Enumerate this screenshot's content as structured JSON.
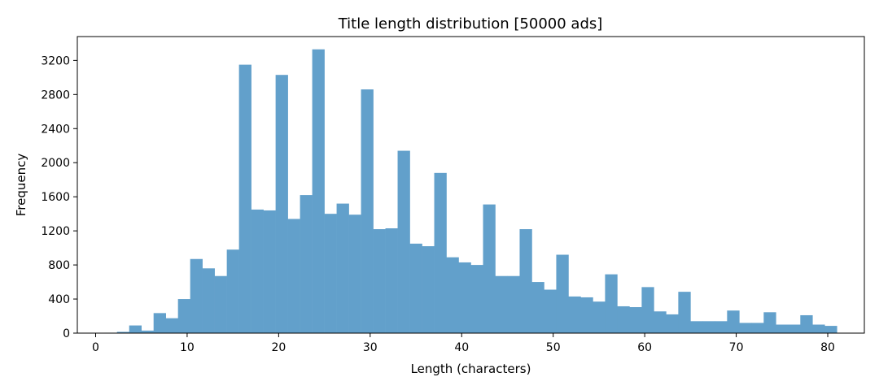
{
  "chart_data": {
    "type": "bar",
    "title": "Title length distribution [50000 ads]",
    "xlabel": "Length (characters)",
    "ylabel": "Frequency",
    "xlim": [
      -2,
      84
    ],
    "ylim": [
      0,
      3480
    ],
    "x_ticks": [
      0,
      10,
      20,
      30,
      40,
      50,
      60,
      70,
      80
    ],
    "y_ticks": [
      0,
      400,
      800,
      1200,
      1600,
      2000,
      2400,
      2800,
      3200
    ],
    "bin_edges": [
      1,
      2.3333,
      3.6667,
      5,
      6.3333,
      7.6667,
      9,
      10.3333,
      11.6667,
      13,
      14.3333,
      15.6667,
      17,
      18.3333,
      19.6667,
      21,
      22.3333,
      23.6667,
      25,
      26.3333,
      27.6667,
      29,
      30.3333,
      31.6667,
      33,
      34.3333,
      35.6667,
      37,
      38.3333,
      39.6667,
      41,
      42.3333,
      43.6667,
      45,
      46.3333,
      47.6667,
      49,
      50.3333,
      51.6667,
      53,
      54.3333,
      55.6667,
      57,
      58.3333,
      59.6667,
      61,
      62.3333,
      63.6667,
      65,
      66.3333,
      67.6667,
      69,
      70.3333,
      71.6667,
      73,
      74.3333,
      75.6667,
      77,
      78.3333,
      79.6667,
      81
    ],
    "values": [
      5,
      15,
      90,
      30,
      235,
      175,
      400,
      870,
      760,
      670,
      980,
      3150,
      1450,
      1440,
      3030,
      1340,
      1620,
      3330,
      1400,
      1520,
      1390,
      2860,
      1220,
      1230,
      2140,
      1050,
      1020,
      1880,
      890,
      830,
      800,
      1510,
      670,
      670,
      1220,
      600,
      510,
      920,
      430,
      420,
      370,
      690,
      315,
      305,
      540,
      255,
      220,
      485,
      140,
      140,
      140,
      265,
      120,
      120,
      245,
      100,
      100,
      210,
      100,
      85
    ],
    "bar_color": "#62a0cb",
    "grid": false
  }
}
